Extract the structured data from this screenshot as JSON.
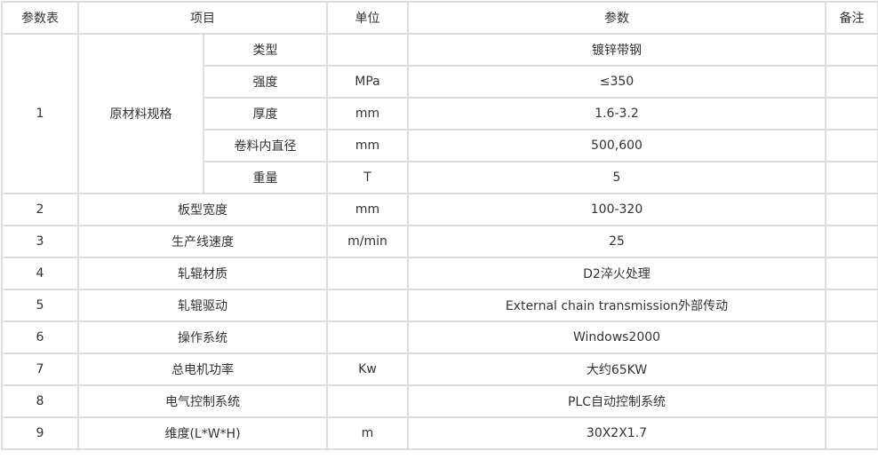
{
  "header": {
    "no": "参数表",
    "item": "项目",
    "unit": "单位",
    "param": "参数",
    "remark": "备注"
  },
  "group": {
    "no": "1",
    "label": "原材料规格",
    "rows": [
      {
        "item": "类型",
        "unit": "",
        "param": "镀锌带钢"
      },
      {
        "item": "强度",
        "unit": "MPa",
        "param": "≤350"
      },
      {
        "item": "厚度",
        "unit": "mm",
        "param": "1.6-3.2"
      },
      {
        "item": "卷料内直径",
        "unit": "mm",
        "param": "500,600"
      },
      {
        "item": "重量",
        "unit": "T",
        "param": "5"
      }
    ]
  },
  "rows": [
    {
      "no": "2",
      "item": "板型宽度",
      "unit": "mm",
      "param": "100-320"
    },
    {
      "no": "3",
      "item": "生产线速度",
      "unit": "m/min",
      "param": "25"
    },
    {
      "no": "4",
      "item": "轧辊材质",
      "unit": "",
      "param": "D2淬火处理"
    },
    {
      "no": "5",
      "item": "轧辊驱动",
      "unit": "",
      "param": "External chain transmission外部传动"
    },
    {
      "no": "6",
      "item": "操作系统",
      "unit": "",
      "param": "Windows2000"
    },
    {
      "no": "7",
      "item": "总电机功率",
      "unit": "Kw",
      "param": "大约65KW"
    },
    {
      "no": "8",
      "item": "电气控制系统",
      "unit": "",
      "param": "PLC自动控制系统"
    },
    {
      "no": "9",
      "item": "维度(L*W*H)",
      "unit": "m",
      "param": "30X2X1.7"
    }
  ]
}
